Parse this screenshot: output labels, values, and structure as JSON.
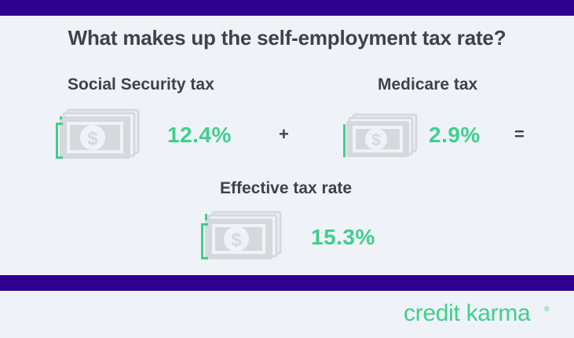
{
  "title": "What makes up the self-employment tax rate?",
  "social_security": {
    "label": "Social Security tax",
    "rate": "12.4%"
  },
  "medicare": {
    "label": "Medicare tax",
    "rate": "2.9%"
  },
  "effective": {
    "label": "Effective tax rate",
    "rate": "15.3%"
  },
  "operators": {
    "plus": "+",
    "equals": "="
  },
  "brand": {
    "name": "credit karma",
    "mark": "®"
  },
  "colors": {
    "accent": "#3ecf8e",
    "band": "#2d0090",
    "text": "#3f4246",
    "background": "#eff3f7",
    "bill": "#d6d9dc"
  },
  "icons": [
    "money-stack-icon",
    "dollar-sign-icon"
  ]
}
